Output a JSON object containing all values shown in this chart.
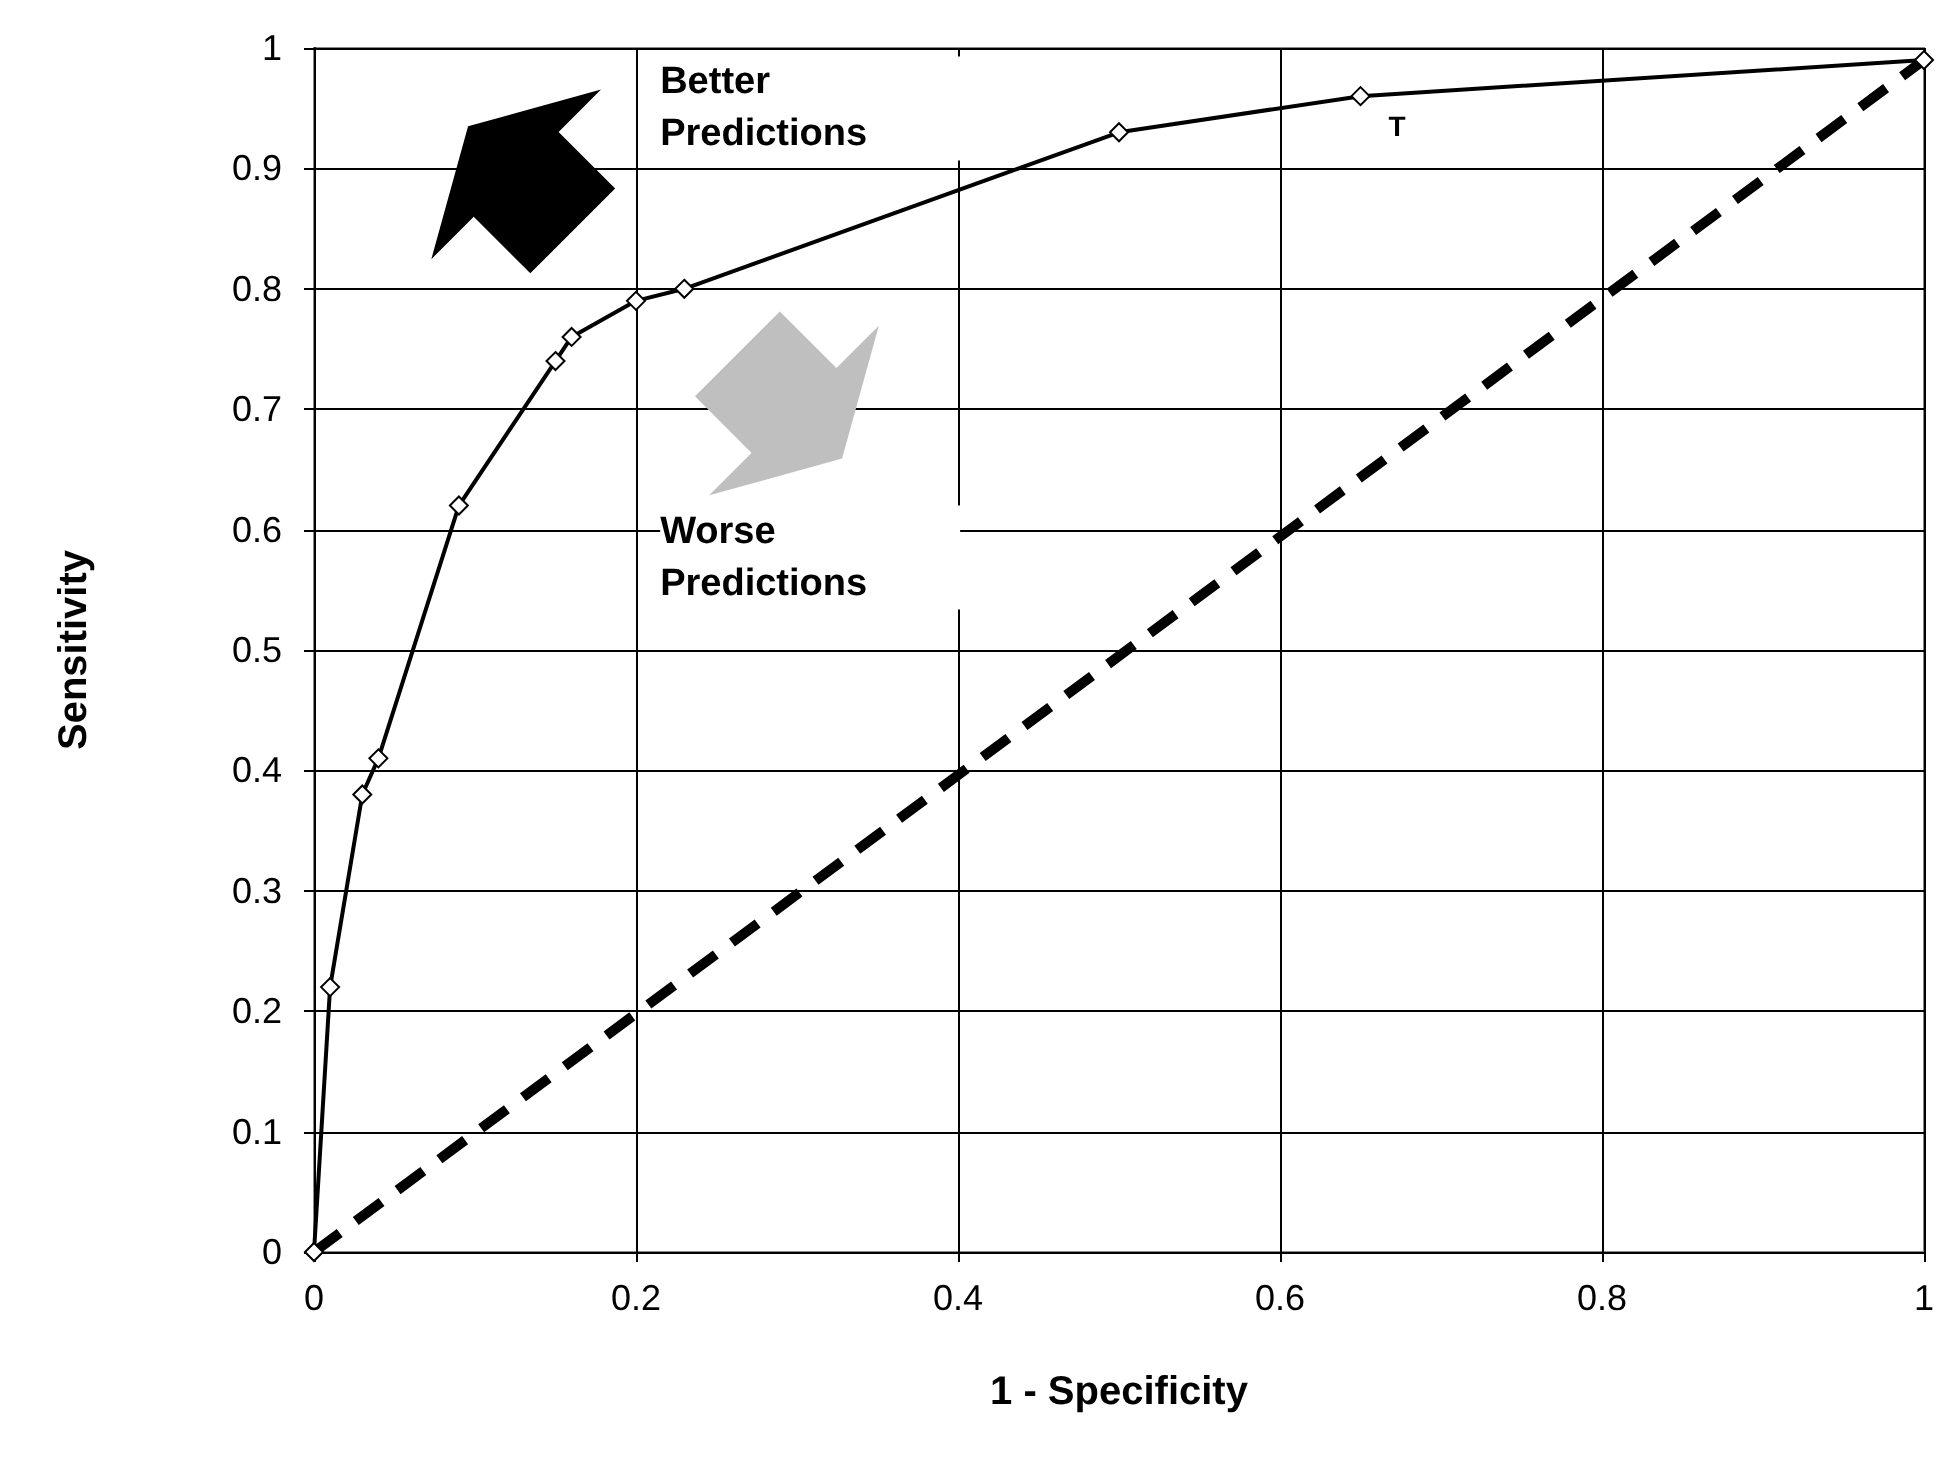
{
  "chart_data": {
    "type": "line",
    "xlabel": "1 - Specificity",
    "ylabel": "Sensitivity",
    "xlim": [
      0,
      1
    ],
    "xticks": [
      0,
      0.2,
      0.4,
      0.6,
      0.8,
      1
    ],
    "ylim": [
      0,
      1
    ],
    "yticks": [
      0,
      0.1,
      0.2,
      0.3,
      0.4,
      0.5,
      0.6,
      0.7,
      0.8,
      0.9,
      1
    ],
    "grid": true,
    "series": [
      {
        "color": "#000000",
        "marker": "diamond",
        "line_style": "solid",
        "x": [
          0,
          0.01,
          0.03,
          0.04,
          0.09,
          0.15,
          0.16,
          0.2,
          0.23,
          0.5,
          0.65,
          1
        ],
        "values": [
          0,
          0.22,
          0.38,
          0.41,
          0.62,
          0.74,
          0.76,
          0.79,
          0.8,
          0.93,
          0.96,
          0.99
        ]
      },
      {
        "color": "#000000",
        "marker": "none",
        "line_style": "dashed",
        "x": [
          0,
          1
        ],
        "values": [
          0,
          0.99
        ]
      }
    ],
    "annotations": [
      "Better Predictions",
      "Worse Predictions",
      {
        "text": "T",
        "x": 0.65,
        "y": 0.96
      }
    ]
  }
}
